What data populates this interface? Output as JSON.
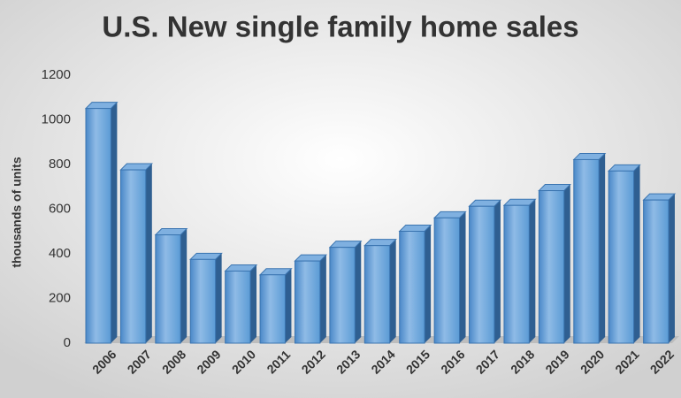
{
  "chart_data": {
    "type": "bar",
    "title": "U.S. New single family home sales",
    "y_label": "thousands of units",
    "categories": [
      "2006",
      "2007",
      "2008",
      "2009",
      "2010",
      "2011",
      "2012",
      "2013",
      "2014",
      "2015",
      "2016",
      "2017",
      "2018",
      "2019",
      "2020",
      "2021",
      "2022"
    ],
    "values": [
      1051,
      776,
      485,
      375,
      323,
      306,
      368,
      429,
      437,
      501,
      561,
      613,
      617,
      683,
      822,
      771,
      641
    ],
    "color": "#5b9bd5",
    "ylim": [
      0,
      1200
    ],
    "yticks": [
      0,
      200,
      400,
      600,
      800,
      1000,
      1200
    ],
    "grid": false
  }
}
